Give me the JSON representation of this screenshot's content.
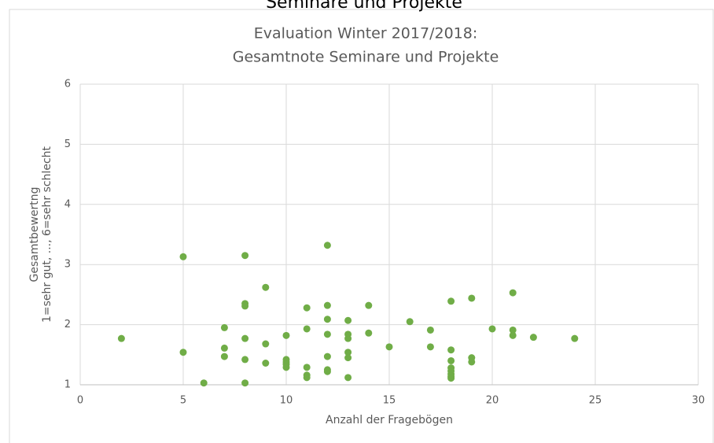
{
  "page_heading": "Seminare und Projekte",
  "chart_data": {
    "type": "scatter",
    "title_lines": [
      "Evaluation Winter 2017/2018:",
      "Gesamtnote Seminare und Projekte"
    ],
    "x_label": "Anzahl der Fragebögen",
    "y_label_lines": [
      "Gesamtbewertng",
      "1=sehr gut, ..., 6=sehr schlecht"
    ],
    "color": "#70ad47",
    "grid": true,
    "xlim": [
      0,
      30
    ],
    "xticks": [
      0,
      5,
      10,
      15,
      20,
      25,
      30
    ],
    "ylim": [
      1,
      6
    ],
    "yticks": [
      1,
      2,
      3,
      4,
      5,
      6
    ],
    "x": [
      2,
      5,
      5,
      6,
      7,
      7,
      7,
      8,
      8,
      8,
      8,
      8,
      8,
      9,
      9,
      9,
      10,
      10,
      10,
      10,
      10,
      11,
      11,
      11,
      11,
      11,
      12,
      12,
      12,
      12,
      12,
      12,
      12,
      13,
      13,
      13,
      13,
      13,
      13,
      14,
      14,
      15,
      16,
      17,
      17,
      18,
      18,
      18,
      18,
      18,
      18,
      18,
      18,
      19,
      19,
      19,
      20,
      21,
      21,
      21,
      22,
      24
    ],
    "values": [
      1.77,
      3.13,
      1.54,
      1.03,
      1.95,
      1.61,
      1.47,
      3.15,
      2.35,
      2.31,
      1.77,
      1.42,
      1.03,
      2.62,
      1.68,
      1.36,
      1.82,
      1.42,
      1.38,
      1.34,
      1.29,
      2.28,
      1.93,
      1.29,
      1.16,
      1.12,
      3.32,
      2.32,
      2.09,
      1.84,
      1.47,
      1.25,
      1.22,
      2.07,
      1.84,
      1.77,
      1.54,
      1.45,
      1.12,
      2.32,
      1.86,
      1.63,
      2.05,
      1.91,
      1.63,
      2.39,
      1.58,
      1.4,
      1.28,
      1.23,
      1.18,
      1.14,
      1.11,
      2.44,
      1.45,
      1.38,
      1.93,
      2.53,
      1.91,
      1.82,
      1.79,
      1.77
    ]
  }
}
